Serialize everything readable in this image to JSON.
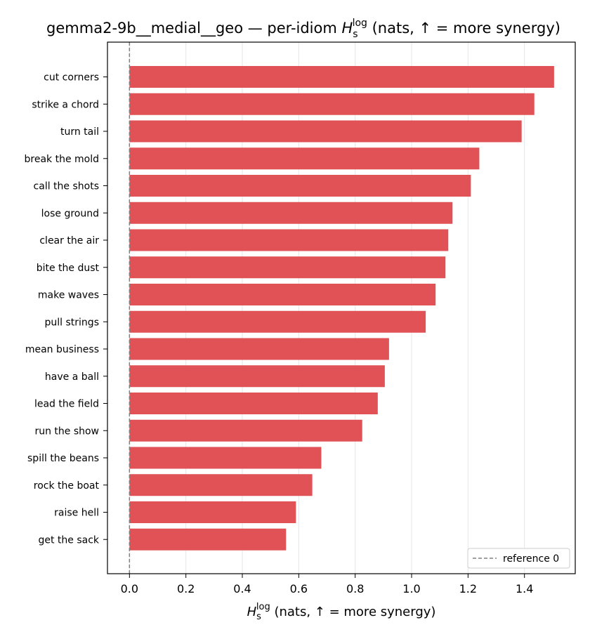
{
  "chart_data": {
    "type": "bar",
    "orientation": "horizontal",
    "title": {
      "prefix": "gemma2-9b__medial__geo — per-idiom ",
      "symbol": "H",
      "sub": "s",
      "sup": "log",
      "suffix": " (nats, ↑ = more synergy)"
    },
    "xlabel": {
      "symbol": "H",
      "sub": "s",
      "sup": "log",
      "suffix": " (nats, ↑ = more synergy)"
    },
    "categories": [
      "cut corners",
      "strike a chord",
      "turn tail",
      "break the mold",
      "call the shots",
      "lose ground",
      "clear the air",
      "bite the dust",
      "make waves",
      "pull strings",
      "mean business",
      "have a ball",
      "lead the field",
      "run the show",
      "spill the beans",
      "rock the boat",
      "raise hell",
      "get the sack"
    ],
    "values": [
      1.505,
      1.435,
      1.39,
      1.24,
      1.21,
      1.145,
      1.13,
      1.12,
      1.085,
      1.05,
      0.92,
      0.905,
      0.88,
      0.825,
      0.68,
      0.648,
      0.59,
      0.555
    ],
    "xlim": [
      -0.078,
      1.58
    ],
    "xticks": [
      0.0,
      0.2,
      0.4,
      0.6,
      0.8,
      1.0,
      1.2,
      1.4
    ],
    "xtick_labels": [
      "0.0",
      "0.2",
      "0.4",
      "0.6",
      "0.8",
      "1.0",
      "1.2",
      "1.4"
    ],
    "grid": "x",
    "bar_color": "#e05255",
    "reference_line": {
      "value": 0,
      "label": "reference 0",
      "color": "#808080",
      "style": "dashed"
    },
    "legend": {
      "position": "lower-right",
      "entries": [
        "reference 0"
      ]
    }
  }
}
